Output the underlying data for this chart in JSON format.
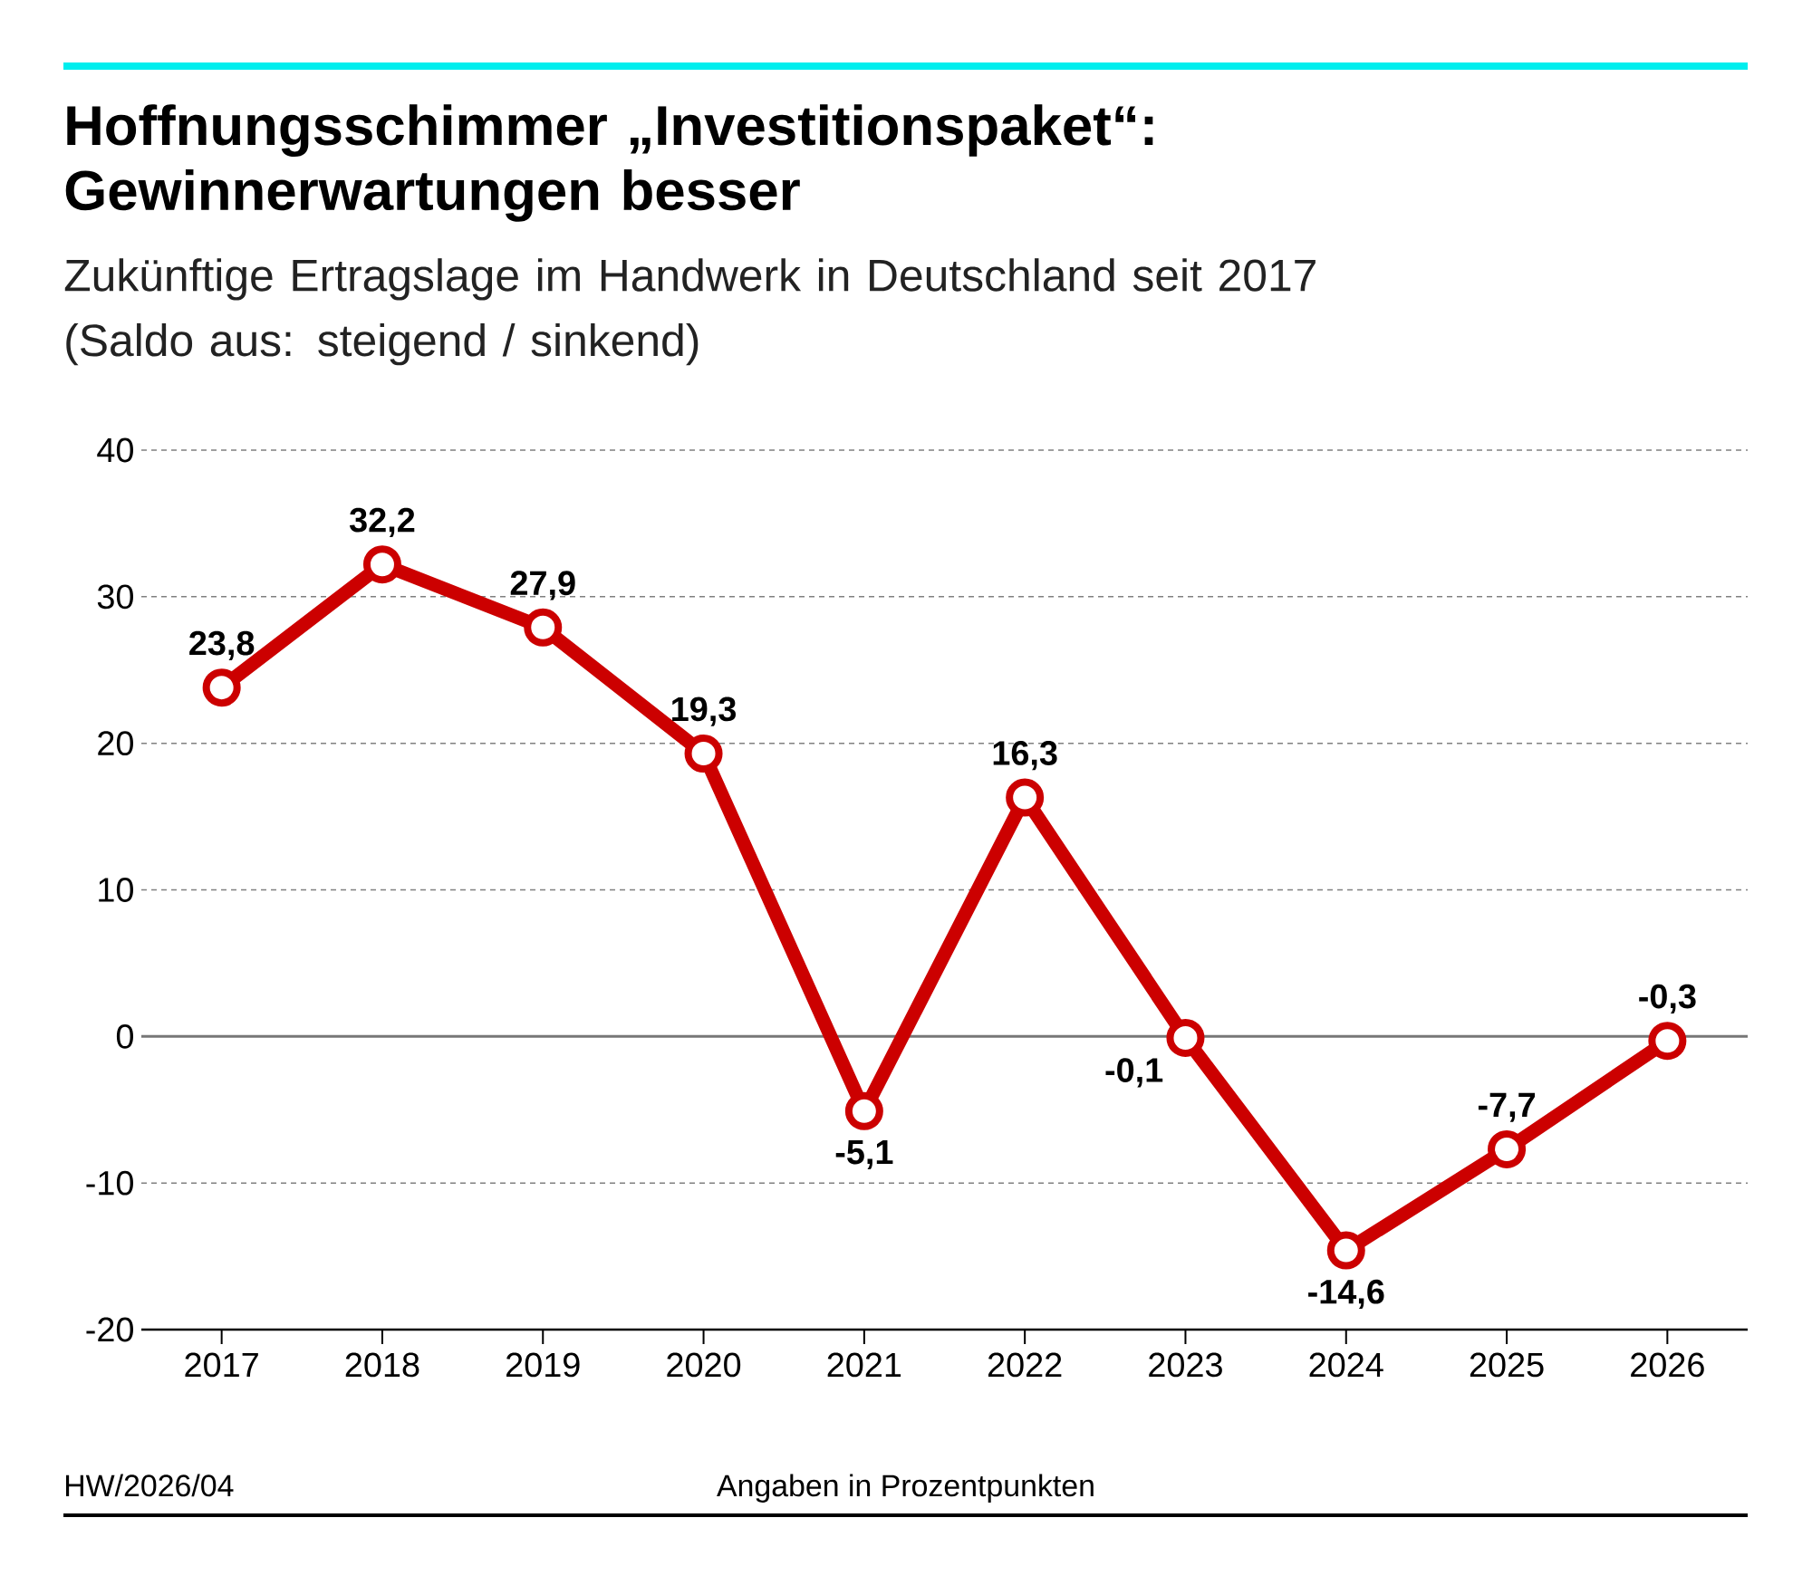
{
  "chart_data": {
    "type": "line",
    "title": "Hoffnungsschimmer „Investitionspaket“: Gewinnerwartungen besser",
    "subtitle": "Zukünftige Ertragslage im Handwerk in Deutschland seit 2017 (Saldo aus: steigend / sinkend)",
    "categories": [
      "2017",
      "2018",
      "2019",
      "2020",
      "2021",
      "2022",
      "2023",
      "2024",
      "2025",
      "2026"
    ],
    "series": [
      {
        "color": "#cc0000",
        "values": [
          23.8,
          32.2,
          27.9,
          19.3,
          -5.1,
          16.3,
          -0.1,
          -14.6,
          -7.7,
          -0.3
        ],
        "value_labels": [
          "23,8",
          "32,2",
          "27,9",
          "19,3",
          "-5,1",
          "16,3",
          "-0,1",
          "-14,6",
          "-7,7",
          "-0,3"
        ]
      }
    ],
    "ylim": [
      -20,
      40
    ],
    "yticks": [
      -20,
      -10,
      0,
      10,
      20,
      30,
      40
    ],
    "grid": "y",
    "marker": "circle",
    "line_style": "solid",
    "ref_lines": [
      {
        "axis": "y",
        "value": 0,
        "color": "#777777"
      }
    ],
    "annotations": [
      "HW/2026/04",
      "Angaben in Prozentpunkten"
    ]
  }
}
